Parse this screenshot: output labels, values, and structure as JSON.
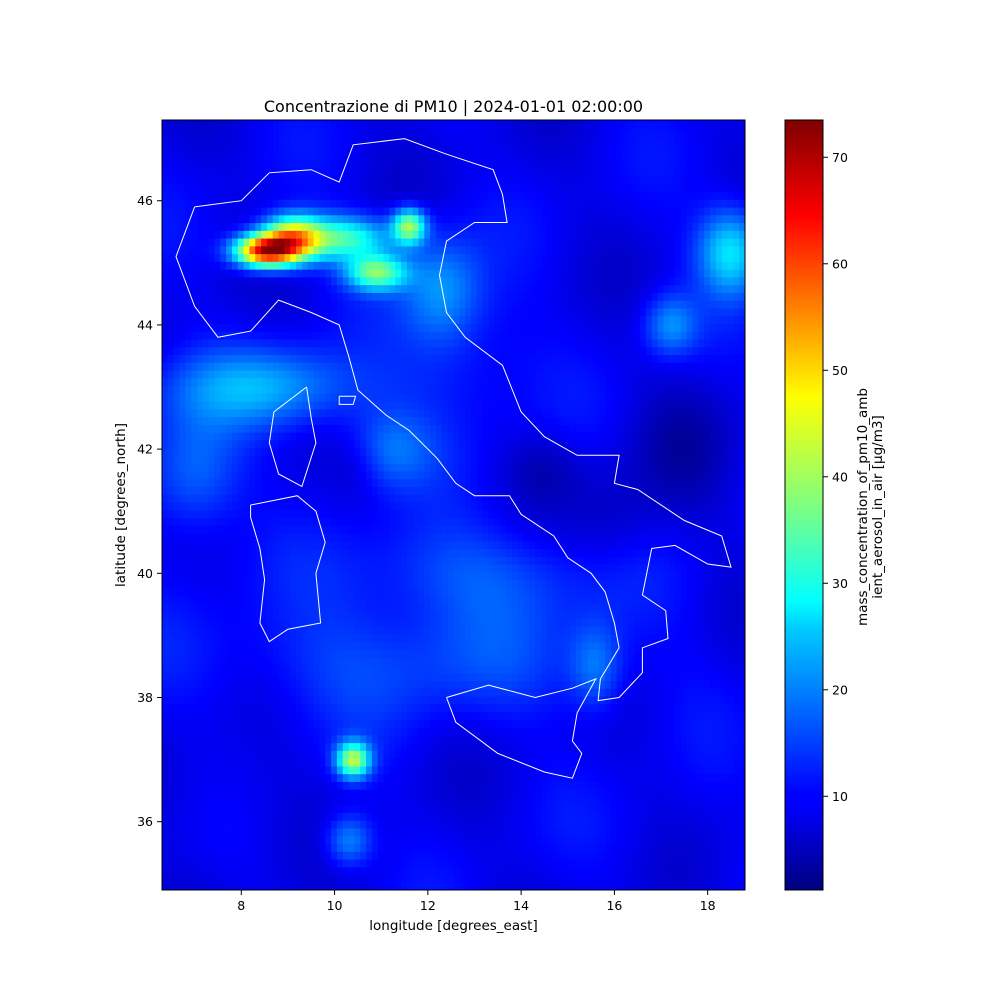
{
  "title": "Concentrazione di PM10 | 2024-01-01 02:00:00",
  "chart_data": {
    "type": "heatmap",
    "xlabel": "longitude [degrees_east]",
    "ylabel": "latitude [degrees_north]",
    "xlim": [
      6.3,
      18.8
    ],
    "ylim": [
      34.9,
      47.3
    ],
    "xticks": [
      "8",
      "10",
      "12",
      "14",
      "16",
      "18"
    ],
    "yticks": [
      "36",
      "38",
      "40",
      "42",
      "44",
      "46"
    ],
    "colormap": "jet",
    "colorbar": {
      "label_line1": "mass_concentration_of_pm10_amb",
      "label_line2": "ient_aerosol_in_air [μg/m3]",
      "range": [
        1.2,
        73.5
      ],
      "ticks": [
        "10",
        "20",
        "30",
        "40",
        "50",
        "60",
        "70"
      ]
    },
    "background_value": 9,
    "hotspots": [
      {
        "lon": 8.5,
        "lat": 45.2,
        "value": 72,
        "sx": 0.45,
        "sy": 0.18
      },
      {
        "lon": 9.1,
        "lat": 45.4,
        "value": 55,
        "sx": 0.45,
        "sy": 0.25
      },
      {
        "lon": 10.2,
        "lat": 45.4,
        "value": 36,
        "sx": 0.7,
        "sy": 0.25
      },
      {
        "lon": 10.9,
        "lat": 44.85,
        "value": 40,
        "sx": 0.45,
        "sy": 0.2
      },
      {
        "lon": 11.6,
        "lat": 45.6,
        "value": 44,
        "sx": 0.25,
        "sy": 0.2
      },
      {
        "lon": 12.3,
        "lat": 44.6,
        "value": 22,
        "sx": 0.6,
        "sy": 0.6
      },
      {
        "lon": 10.4,
        "lat": 37.0,
        "value": 46,
        "sx": 0.25,
        "sy": 0.2
      },
      {
        "lon": 10.3,
        "lat": 35.7,
        "value": 23,
        "sx": 0.35,
        "sy": 0.3
      },
      {
        "lon": 18.5,
        "lat": 45.2,
        "value": 30,
        "sx": 0.5,
        "sy": 0.5
      },
      {
        "lon": 17.2,
        "lat": 44.0,
        "value": 22,
        "sx": 0.4,
        "sy": 0.35
      },
      {
        "lon": 8.5,
        "lat": 43.0,
        "value": 24,
        "sx": 1.5,
        "sy": 0.45
      },
      {
        "lon": 7.0,
        "lat": 41.6,
        "value": 20,
        "sx": 0.7,
        "sy": 0.7
      },
      {
        "lon": 11.1,
        "lat": 42.0,
        "value": 20,
        "sx": 0.7,
        "sy": 0.45
      },
      {
        "lon": 13.0,
        "lat": 40.0,
        "value": 17,
        "sx": 2.0,
        "sy": 0.6
      },
      {
        "lon": 11.5,
        "lat": 38.6,
        "value": 16,
        "sx": 3.0,
        "sy": 0.7
      },
      {
        "lon": 15.6,
        "lat": 38.5,
        "value": 20,
        "sx": 0.4,
        "sy": 0.5
      },
      {
        "lon": 12.8,
        "lat": 43.4,
        "value": 14,
        "sx": 1.0,
        "sy": 0.8
      },
      {
        "lon": 16.0,
        "lat": 40.8,
        "value": 5,
        "sx": 0.7,
        "sy": 0.6
      },
      {
        "lon": 14.5,
        "lat": 41.7,
        "value": 5,
        "sx": 0.6,
        "sy": 0.4
      },
      {
        "lon": 10.5,
        "lat": 41.8,
        "value": 5,
        "sx": 0.4,
        "sy": 0.4
      },
      {
        "lon": 17.5,
        "lat": 42.0,
        "value": 5,
        "sx": 0.8,
        "sy": 0.8
      },
      {
        "lon": 7.5,
        "lat": 36.5,
        "value": 7,
        "sx": 1.0,
        "sy": 0.6
      },
      {
        "lon": 16.5,
        "lat": 35.8,
        "value": 10,
        "sx": 1.0,
        "sy": 0.5
      }
    ],
    "coastlines": {
      "italy": [
        [
          7.0,
          45.9
        ],
        [
          6.8,
          45.5
        ],
        [
          6.6,
          45.1
        ],
        [
          7.0,
          44.3
        ],
        [
          7.5,
          43.8
        ],
        [
          8.2,
          43.9
        ],
        [
          8.8,
          44.4
        ],
        [
          9.5,
          44.2
        ],
        [
          10.1,
          44.0
        ],
        [
          10.3,
          43.5
        ],
        [
          10.5,
          42.95
        ],
        [
          11.1,
          42.55
        ],
        [
          11.6,
          42.3
        ],
        [
          12.2,
          41.85
        ],
        [
          12.6,
          41.45
        ],
        [
          13.0,
          41.25
        ],
        [
          13.75,
          41.25
        ],
        [
          14.0,
          40.95
        ],
        [
          14.3,
          40.8
        ],
        [
          14.7,
          40.6
        ],
        [
          15.0,
          40.25
        ],
        [
          15.5,
          40.0
        ],
        [
          15.8,
          39.7
        ],
        [
          16.0,
          39.2
        ],
        [
          16.1,
          38.8
        ],
        [
          15.7,
          38.3
        ],
        [
          15.65,
          37.95
        ],
        [
          16.1,
          38.0
        ],
        [
          16.6,
          38.4
        ],
        [
          16.6,
          38.8
        ],
        [
          17.15,
          38.95
        ],
        [
          17.1,
          39.4
        ],
        [
          16.6,
          39.65
        ],
        [
          16.8,
          40.4
        ],
        [
          17.3,
          40.45
        ],
        [
          18.0,
          40.15
        ],
        [
          18.5,
          40.1
        ],
        [
          18.3,
          40.6
        ],
        [
          17.5,
          40.85
        ],
        [
          16.5,
          41.35
        ],
        [
          16.0,
          41.45
        ],
        [
          16.1,
          41.9
        ],
        [
          15.2,
          41.9
        ],
        [
          14.5,
          42.2
        ],
        [
          14.0,
          42.6
        ],
        [
          13.6,
          43.35
        ],
        [
          12.8,
          43.8
        ],
        [
          12.4,
          44.2
        ],
        [
          12.25,
          44.8
        ],
        [
          12.4,
          45.35
        ],
        [
          13.0,
          45.65
        ],
        [
          13.7,
          45.65
        ],
        [
          13.6,
          46.1
        ],
        [
          13.4,
          46.5
        ],
        [
          12.4,
          46.75
        ],
        [
          11.5,
          47.0
        ],
        [
          10.4,
          46.9
        ],
        [
          10.1,
          46.3
        ],
        [
          9.5,
          46.5
        ],
        [
          8.6,
          46.45
        ],
        [
          8.0,
          46.0
        ],
        [
          7.0,
          45.9
        ]
      ],
      "sicily": [
        [
          12.4,
          38.0
        ],
        [
          13.3,
          38.2
        ],
        [
          14.3,
          38.0
        ],
        [
          15.1,
          38.15
        ],
        [
          15.6,
          38.3
        ],
        [
          15.2,
          37.75
        ],
        [
          15.1,
          37.3
        ],
        [
          15.3,
          37.1
        ],
        [
          15.1,
          36.7
        ],
        [
          14.5,
          36.8
        ],
        [
          13.5,
          37.1
        ],
        [
          12.6,
          37.6
        ],
        [
          12.4,
          38.0
        ]
      ],
      "sardinia": [
        [
          8.2,
          41.1
        ],
        [
          9.2,
          41.25
        ],
        [
          9.6,
          41.0
        ],
        [
          9.8,
          40.5
        ],
        [
          9.6,
          40.0
        ],
        [
          9.7,
          39.2
        ],
        [
          9.0,
          39.1
        ],
        [
          8.6,
          38.9
        ],
        [
          8.4,
          39.2
        ],
        [
          8.5,
          39.9
        ],
        [
          8.4,
          40.4
        ],
        [
          8.2,
          40.9
        ],
        [
          8.2,
          41.1
        ]
      ],
      "corsica": [
        [
          9.4,
          43.0
        ],
        [
          9.5,
          42.5
        ],
        [
          9.6,
          42.1
        ],
        [
          9.3,
          41.4
        ],
        [
          8.8,
          41.6
        ],
        [
          8.6,
          42.1
        ],
        [
          8.7,
          42.6
        ],
        [
          9.4,
          43.0
        ]
      ],
      "elba": [
        [
          10.1,
          42.85
        ],
        [
          10.45,
          42.85
        ],
        [
          10.4,
          42.72
        ],
        [
          10.1,
          42.72
        ],
        [
          10.1,
          42.85
        ]
      ]
    }
  }
}
